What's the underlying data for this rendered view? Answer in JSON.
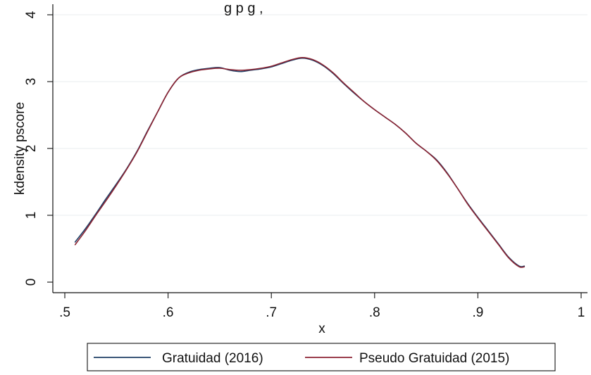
{
  "chart_data": {
    "type": "line",
    "title_fragment": "g      p     g    ,",
    "xlabel": "x",
    "ylabel": "kdensity pscore",
    "xlim": [
      0.5,
      1.0
    ],
    "ylim": [
      0,
      4
    ],
    "x_ticks": [
      {
        "value": 0.5,
        "label": ".5"
      },
      {
        "value": 0.6,
        "label": ".6"
      },
      {
        "value": 0.7,
        "label": ".7"
      },
      {
        "value": 0.8,
        "label": ".8"
      },
      {
        "value": 0.9,
        "label": ".9"
      },
      {
        "value": 1.0,
        "label": "1"
      }
    ],
    "y_ticks": [
      {
        "value": 0,
        "label": "0"
      },
      {
        "value": 1,
        "label": "1"
      },
      {
        "value": 2,
        "label": "2"
      },
      {
        "value": 3,
        "label": "3"
      },
      {
        "value": 4,
        "label": "4"
      }
    ],
    "grid": true,
    "legend_position": "bottom",
    "series": [
      {
        "name": "Gratuidad (2016)",
        "color": "#1f3f66",
        "points": [
          [
            0.51,
            0.6
          ],
          [
            0.52,
            0.8
          ],
          [
            0.53,
            1.02
          ],
          [
            0.54,
            1.25
          ],
          [
            0.55,
            1.47
          ],
          [
            0.56,
            1.7
          ],
          [
            0.57,
            1.96
          ],
          [
            0.58,
            2.26
          ],
          [
            0.59,
            2.55
          ],
          [
            0.6,
            2.84
          ],
          [
            0.61,
            3.05
          ],
          [
            0.62,
            3.14
          ],
          [
            0.63,
            3.18
          ],
          [
            0.64,
            3.2
          ],
          [
            0.65,
            3.21
          ],
          [
            0.66,
            3.17
          ],
          [
            0.67,
            3.15
          ],
          [
            0.68,
            3.17
          ],
          [
            0.69,
            3.19
          ],
          [
            0.7,
            3.22
          ],
          [
            0.71,
            3.27
          ],
          [
            0.72,
            3.32
          ],
          [
            0.73,
            3.35
          ],
          [
            0.74,
            3.32
          ],
          [
            0.75,
            3.24
          ],
          [
            0.76,
            3.12
          ],
          [
            0.77,
            2.97
          ],
          [
            0.78,
            2.83
          ],
          [
            0.79,
            2.7
          ],
          [
            0.8,
            2.58
          ],
          [
            0.81,
            2.47
          ],
          [
            0.82,
            2.36
          ],
          [
            0.83,
            2.23
          ],
          [
            0.84,
            2.08
          ],
          [
            0.85,
            1.96
          ],
          [
            0.86,
            1.83
          ],
          [
            0.87,
            1.64
          ],
          [
            0.88,
            1.41
          ],
          [
            0.89,
            1.18
          ],
          [
            0.9,
            0.97
          ],
          [
            0.91,
            0.77
          ],
          [
            0.92,
            0.57
          ],
          [
            0.93,
            0.37
          ],
          [
            0.94,
            0.24
          ],
          [
            0.945,
            0.24
          ]
        ]
      },
      {
        "name": "Pseudo Gratuidad (2015)",
        "color": "#8b2332",
        "points": [
          [
            0.51,
            0.56
          ],
          [
            0.52,
            0.77
          ],
          [
            0.53,
            1.0
          ],
          [
            0.54,
            1.22
          ],
          [
            0.55,
            1.45
          ],
          [
            0.56,
            1.69
          ],
          [
            0.57,
            1.95
          ],
          [
            0.58,
            2.25
          ],
          [
            0.59,
            2.55
          ],
          [
            0.6,
            2.84
          ],
          [
            0.61,
            3.05
          ],
          [
            0.62,
            3.13
          ],
          [
            0.63,
            3.17
          ],
          [
            0.64,
            3.19
          ],
          [
            0.65,
            3.2
          ],
          [
            0.66,
            3.18
          ],
          [
            0.67,
            3.17
          ],
          [
            0.68,
            3.18
          ],
          [
            0.69,
            3.2
          ],
          [
            0.7,
            3.23
          ],
          [
            0.71,
            3.28
          ],
          [
            0.72,
            3.33
          ],
          [
            0.73,
            3.36
          ],
          [
            0.74,
            3.33
          ],
          [
            0.75,
            3.25
          ],
          [
            0.76,
            3.13
          ],
          [
            0.77,
            2.98
          ],
          [
            0.78,
            2.84
          ],
          [
            0.79,
            2.7
          ],
          [
            0.8,
            2.58
          ],
          [
            0.81,
            2.47
          ],
          [
            0.82,
            2.36
          ],
          [
            0.83,
            2.23
          ],
          [
            0.84,
            2.08
          ],
          [
            0.85,
            1.96
          ],
          [
            0.86,
            1.82
          ],
          [
            0.87,
            1.63
          ],
          [
            0.88,
            1.41
          ],
          [
            0.89,
            1.17
          ],
          [
            0.9,
            0.96
          ],
          [
            0.91,
            0.76
          ],
          [
            0.92,
            0.56
          ],
          [
            0.93,
            0.36
          ],
          [
            0.94,
            0.23
          ],
          [
            0.945,
            0.23
          ]
        ]
      }
    ]
  }
}
